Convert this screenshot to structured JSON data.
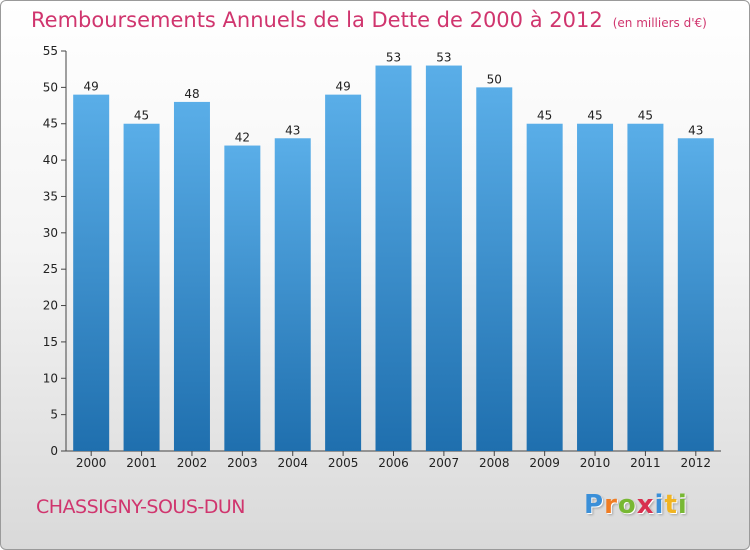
{
  "header": {
    "title": "Remboursements Annuels de la Dette de 2000 à 2012",
    "subtitle": "(en milliers d'€)"
  },
  "footer": {
    "commune": "CHASSIGNY-SOUS-DUN",
    "logo_text": "Proxiti",
    "logo_letters": [
      {
        "ch": "P",
        "color": "#3a8fd8"
      },
      {
        "ch": "r",
        "color": "#f07c22"
      },
      {
        "ch": "o",
        "color": "#78b833"
      },
      {
        "ch": "x",
        "color": "#d8304f"
      },
      {
        "ch": "i",
        "color": "#3a8fd8"
      },
      {
        "ch": "t",
        "color": "#f0b422"
      },
      {
        "ch": "i",
        "color": "#78b833"
      }
    ]
  },
  "colors": {
    "title": "#d0356e",
    "bar_light": "#5aaee8",
    "bar_dark": "#1f6fae"
  },
  "chart_data": {
    "type": "bar",
    "title": "Remboursements Annuels de la Dette de 2000 à 2012",
    "subtitle": "(en milliers d'€)",
    "categories": [
      "2000",
      "2001",
      "2002",
      "2003",
      "2004",
      "2005",
      "2006",
      "2007",
      "2008",
      "2009",
      "2010",
      "2011",
      "2012"
    ],
    "values": [
      49,
      45,
      48,
      42,
      43,
      49,
      53,
      53,
      50,
      45,
      45,
      45,
      43
    ],
    "ylim": [
      0,
      55
    ],
    "yticks": [
      0,
      5,
      10,
      15,
      20,
      25,
      30,
      35,
      40,
      45,
      50,
      55
    ],
    "xlabel": "",
    "ylabel": "",
    "grid": false,
    "legend": "none"
  }
}
